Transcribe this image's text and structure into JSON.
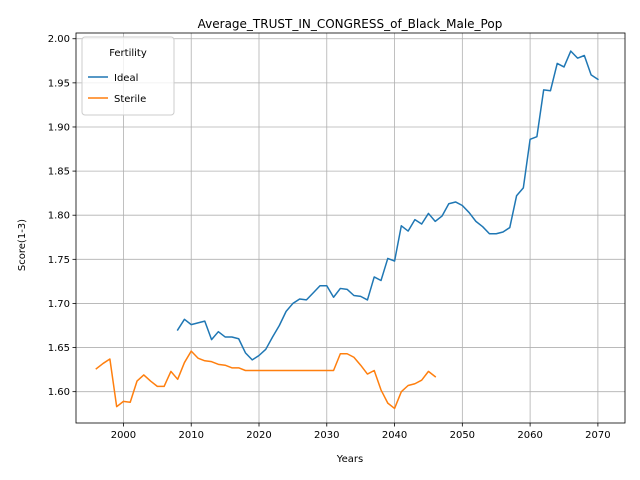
{
  "chart_data": {
    "type": "line",
    "title": "Average_TRUST_IN_CONGRESS_of_Black_Male_Pop",
    "xlabel": "Years",
    "ylabel": "Score(1-3)",
    "xlim": [
      1993,
      2074
    ],
    "ylim": [
      1.5645,
      2.0065
    ],
    "xticks": [
      2000,
      2010,
      2020,
      2030,
      2040,
      2050,
      2060,
      2070
    ],
    "yticks": [
      1.6,
      1.65,
      1.7,
      1.75,
      1.8,
      1.85,
      1.9,
      1.95,
      2.0
    ],
    "ytick_labels": [
      "1.60",
      "1.65",
      "1.70",
      "1.75",
      "1.80",
      "1.85",
      "1.90",
      "1.95",
      "2.00"
    ],
    "grid": true,
    "legend": {
      "title": "Fertility",
      "position": "upper-left"
    },
    "series": [
      {
        "name": "Ideal",
        "color": "#1f77b4",
        "x": [
          2008,
          2009,
          2010,
          2011,
          2012,
          2013,
          2014,
          2015,
          2016,
          2017,
          2018,
          2019,
          2020,
          2021,
          2022,
          2023,
          2024,
          2025,
          2026,
          2027,
          2028,
          2029,
          2030,
          2031,
          2032,
          2033,
          2034,
          2035,
          2036,
          2037,
          2038,
          2039,
          2040,
          2041,
          2042,
          2043,
          2044,
          2045,
          2046,
          2047,
          2048,
          2049,
          2050,
          2051,
          2052,
          2053,
          2054,
          2055,
          2056,
          2057,
          2058,
          2059,
          2060,
          2061,
          2062,
          2063,
          2064,
          2065,
          2066,
          2067,
          2068,
          2069,
          2070
        ],
        "y": [
          1.67,
          1.682,
          1.676,
          1.678,
          1.68,
          1.659,
          1.668,
          1.662,
          1.662,
          1.66,
          1.644,
          1.636,
          1.641,
          1.648,
          1.662,
          1.675,
          1.691,
          1.7,
          1.705,
          1.704,
          1.712,
          1.72,
          1.72,
          1.707,
          1.717,
          1.716,
          1.709,
          1.708,
          1.704,
          1.73,
          1.726,
          1.751,
          1.748,
          1.788,
          1.782,
          1.795,
          1.79,
          1.802,
          1.793,
          1.799,
          1.813,
          1.815,
          1.811,
          1.803,
          1.793,
          1.787,
          1.779,
          1.779,
          1.781,
          1.786,
          1.822,
          1.831,
          1.886,
          1.889,
          1.942,
          1.941,
          1.972,
          1.968,
          1.986,
          1.978,
          1.981,
          1.959,
          1.954
        ]
      },
      {
        "name": "Sterile",
        "color": "#ff7f0e",
        "x": [
          1996,
          1997,
          1998,
          1999,
          2000,
          2001,
          2002,
          2003,
          2004,
          2005,
          2006,
          2007,
          2008,
          2009,
          2010,
          2011,
          2012,
          2013,
          2014,
          2015,
          2016,
          2017,
          2018,
          2019,
          2020,
          2021,
          2022,
          2023,
          2024,
          2025,
          2026,
          2027,
          2028,
          2029,
          2030,
          2031,
          2032,
          2033,
          2034,
          2035,
          2036,
          2037,
          2038,
          2039,
          2040,
          2041,
          2042,
          2043,
          2044,
          2045,
          2046
        ],
        "y": [
          1.626,
          1.632,
          1.637,
          1.583,
          1.589,
          1.588,
          1.612,
          1.619,
          1.612,
          1.606,
          1.606,
          1.623,
          1.614,
          1.633,
          1.646,
          1.638,
          1.635,
          1.634,
          1.631,
          1.63,
          1.627,
          1.627,
          1.624,
          1.624,
          1.624,
          1.624,
          1.624,
          1.624,
          1.624,
          1.624,
          1.624,
          1.624,
          1.624,
          1.624,
          1.624,
          1.624,
          1.643,
          1.643,
          1.639,
          1.63,
          1.62,
          1.624,
          1.602,
          1.587,
          1.581,
          1.6,
          1.607,
          1.609,
          1.613,
          1.623,
          1.617
        ]
      }
    ]
  }
}
